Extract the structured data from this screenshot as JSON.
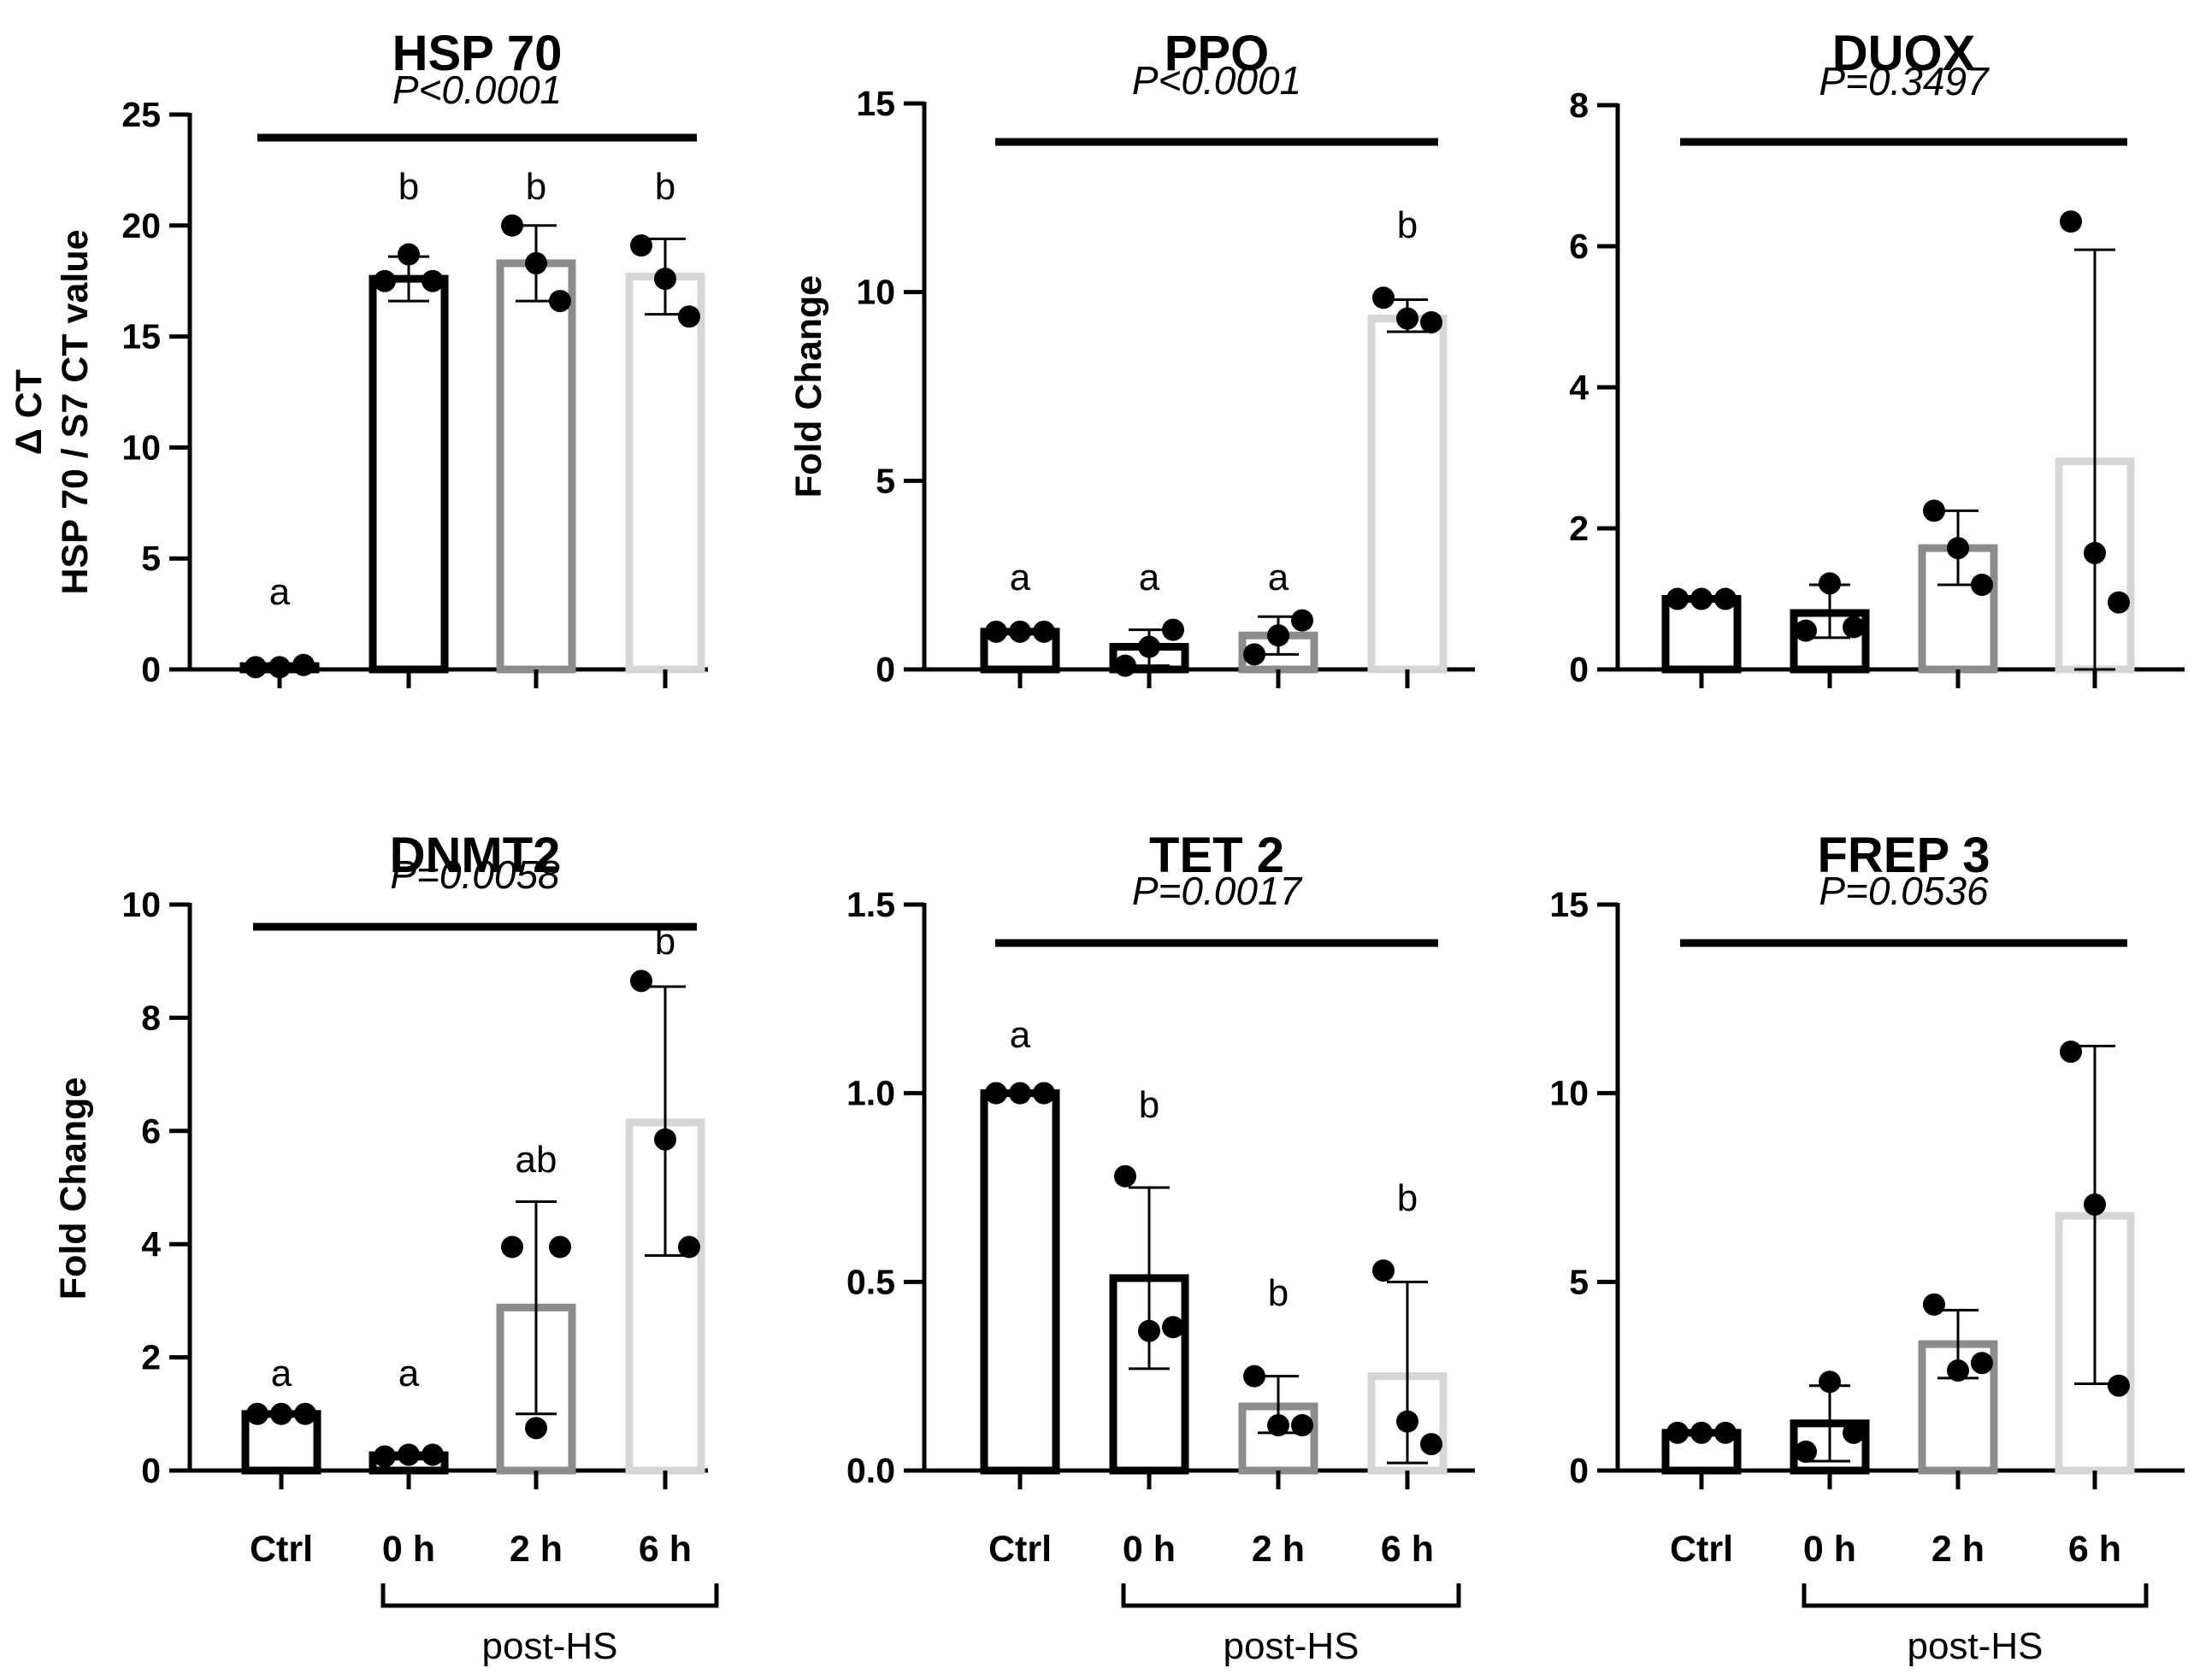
{
  "chart_data": [
    {
      "type": "bar",
      "title": "HSP 70",
      "ylabel": [
        "Δ CT",
        "HSP 70 / S7 CT value"
      ],
      "ylim": [
        0,
        25
      ],
      "yticks": [
        0,
        5,
        10,
        15,
        20,
        25
      ],
      "categories": [
        "Ctrl",
        "0 h",
        "2 h",
        "6 h"
      ],
      "values": [
        0.15,
        17.6,
        18.3,
        17.7
      ],
      "error_upper": [
        0.2,
        18.6,
        20.0,
        19.4
      ],
      "error_lower": [
        0.1,
        16.6,
        16.6,
        16.0
      ],
      "points": [
        [
          0.1,
          0.1,
          0.2
        ],
        [
          17.5,
          18.7,
          17.5
        ],
        [
          20.0,
          18.3,
          16.6
        ],
        [
          19.1,
          17.6,
          15.9
        ]
      ],
      "letters": [
        "a",
        "b",
        "b",
        "b"
      ],
      "pvalue": "P<0.0001",
      "bar_colors": [
        "#000000",
        "#000000",
        "#8c8c8c",
        "#d6d6d6"
      ]
    },
    {
      "type": "bar",
      "title": "PPO",
      "ylabel": [
        "Fold Change"
      ],
      "ylim": [
        0,
        15
      ],
      "yticks": [
        0,
        5,
        10,
        15
      ],
      "categories": [
        "Ctrl",
        "0 h",
        "2 h",
        "6 h"
      ],
      "values": [
        1.0,
        0.6,
        0.9,
        9.3
      ],
      "error_upper": [
        1.0,
        1.05,
        1.4,
        9.8
      ],
      "error_lower": [
        1.0,
        0.1,
        0.4,
        8.95
      ],
      "points": [
        [
          1.0,
          1.0,
          1.0
        ],
        [
          0.1,
          0.6,
          1.05
        ],
        [
          0.4,
          0.9,
          1.3
        ],
        [
          9.85,
          9.3,
          9.2
        ]
      ],
      "letters": [
        "a",
        "a",
        "a",
        "b"
      ],
      "pvalue": "P<0.0001",
      "bar_colors": [
        "#000000",
        "#000000",
        "#8c8c8c",
        "#d6d6d6"
      ]
    },
    {
      "type": "bar",
      "title": "DUOX",
      "ylabel": [],
      "ylim": [
        0,
        8
      ],
      "yticks": [
        0,
        2,
        4,
        6,
        8
      ],
      "categories": [
        "Ctrl",
        "0 h",
        "2 h",
        "6 h"
      ],
      "values": [
        1.0,
        0.8,
        1.72,
        2.95
      ],
      "error_upper": [
        1.0,
        1.2,
        2.25,
        5.95
      ],
      "error_lower": [
        1.0,
        0.45,
        1.2,
        0.0
      ],
      "points": [
        [
          1.0,
          1.0,
          1.0
        ],
        [
          0.55,
          1.22,
          0.6
        ],
        [
          2.25,
          1.72,
          1.2
        ],
        [
          6.35,
          1.65,
          0.95
        ]
      ],
      "letters": [],
      "pvalue": "P=0.3497",
      "bar_colors": [
        "#000000",
        "#000000",
        "#8c8c8c",
        "#d6d6d6"
      ]
    },
    {
      "type": "bar",
      "title": "DNMT2",
      "ylabel": [
        "Fold Change"
      ],
      "ylim": [
        0,
        10
      ],
      "yticks": [
        0,
        2,
        4,
        6,
        8,
        10
      ],
      "categories": [
        "Ctrl",
        "0 h",
        "2 h",
        "6 h"
      ],
      "values": [
        1.0,
        0.27,
        2.88,
        6.15
      ],
      "error_upper": [
        1.0,
        0.3,
        4.75,
        8.55
      ],
      "error_lower": [
        1.0,
        0.2,
        1.0,
        3.8
      ],
      "points": [
        [
          1.0,
          1.0,
          1.0
        ],
        [
          0.25,
          0.28,
          0.28
        ],
        [
          3.95,
          0.75,
          3.95
        ],
        [
          8.65,
          5.85,
          3.95
        ]
      ],
      "letters": [
        "a",
        "a",
        "ab",
        "b"
      ],
      "pvalue": "P=0.0058",
      "bar_colors": [
        "#000000",
        "#000000",
        "#8c8c8c",
        "#d6d6d6"
      ]
    },
    {
      "type": "bar",
      "title": "TET 2",
      "ylabel": [],
      "ylim": [
        0,
        1.5
      ],
      "yticks": [
        0.0,
        0.5,
        1.0,
        1.5
      ],
      "ytick_labels": [
        "0.0",
        "0.5",
        "1.0",
        "1.5"
      ],
      "categories": [
        "Ctrl",
        "0 h",
        "2 h",
        "6 h"
      ],
      "values": [
        1.0,
        0.51,
        0.17,
        0.25
      ],
      "error_upper": [
        1.0,
        0.75,
        0.25,
        0.5
      ],
      "error_lower": [
        1.0,
        0.27,
        0.1,
        0.02
      ],
      "points": [
        [
          1.0,
          1.0,
          1.0
        ],
        [
          0.78,
          0.37,
          0.38
        ],
        [
          0.25,
          0.12,
          0.12
        ],
        [
          0.53,
          0.13,
          0.07
        ]
      ],
      "letters": [
        "a",
        "b",
        "b",
        "b"
      ],
      "pvalue": "P=0.0017",
      "bar_colors": [
        "#000000",
        "#000000",
        "#8c8c8c",
        "#d6d6d6"
      ]
    },
    {
      "type": "bar",
      "title": "FREP 3",
      "ylabel": [],
      "ylim": [
        0,
        15
      ],
      "yticks": [
        0,
        5,
        10,
        15
      ],
      "categories": [
        "Ctrl",
        "0 h",
        "2 h",
        "6 h"
      ],
      "values": [
        1.0,
        1.25,
        3.35,
        6.75
      ],
      "error_upper": [
        1.0,
        2.25,
        4.25,
        11.25
      ],
      "error_lower": [
        1.0,
        0.25,
        2.45,
        2.3
      ],
      "points": [
        [
          1.0,
          1.0,
          1.0
        ],
        [
          0.5,
          2.35,
          1.0
        ],
        [
          4.4,
          2.65,
          2.85
        ],
        [
          11.1,
          7.05,
          2.25
        ]
      ],
      "letters": [],
      "pvalue": "P=0.0536",
      "bar_colors": [
        "#000000",
        "#000000",
        "#8c8c8c",
        "#d6d6d6"
      ]
    }
  ],
  "bracket_label": "post-HS"
}
